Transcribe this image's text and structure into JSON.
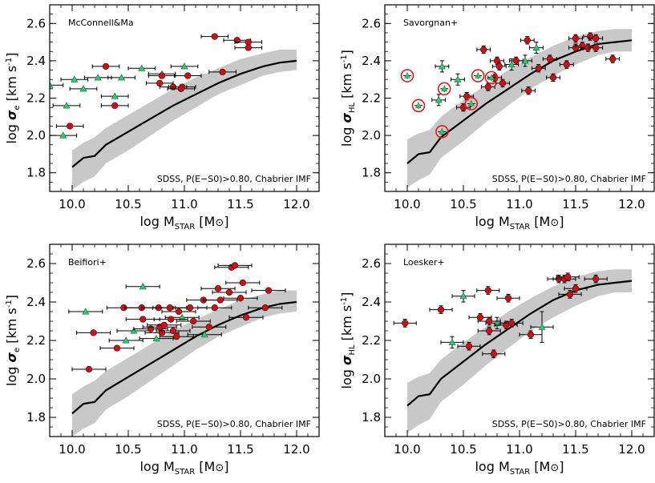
{
  "figure": {
    "footnote": "SDSS, P(E−S0)>0.80, Chabrier IMF",
    "xlabel_main": "log M",
    "xlabel_sub": "STAR",
    "xlabel_unit_open": " [M",
    "xlabel_unit_sym": "⊙",
    "xlabel_unit_close": "]",
    "ylabel_sigma": "σ",
    "ylabel_log": "log ",
    "ylabel_units": " [km s",
    "ylabel_exp": "-1",
    "ylabel_close": "]",
    "colors": {
      "relation_line": "#000000",
      "scatter_band": "#c8c8c8",
      "circle_fill": "#c0151b",
      "circle_stroke": "#6b0000",
      "triangle_fill": "#2ecc71",
      "triangle_stroke": "#0b6b30",
      "open_circle_stroke": "#e01b1b",
      "error_bar": "#000000"
    }
  },
  "chart_data": [
    {
      "type": "scatter",
      "panel_label": "McConnell&Ma",
      "y_subscript": "e",
      "xlim": [
        9.8,
        12.2
      ],
      "ylim": [
        1.7,
        2.7
      ],
      "x_ticks": [
        "10.0",
        "10.5",
        "11.0",
        "11.5",
        "12.0"
      ],
      "y_ticks": [
        "1.8",
        "2.0",
        "2.2",
        "2.4",
        "2.6"
      ],
      "relation": {
        "x": [
          10.0,
          10.1,
          10.2,
          10.3,
          10.5,
          10.7,
          10.9,
          11.1,
          11.3,
          11.5,
          11.7,
          11.85,
          12.0
        ],
        "y": [
          1.83,
          1.88,
          1.89,
          1.95,
          2.02,
          2.09,
          2.16,
          2.22,
          2.28,
          2.33,
          2.37,
          2.39,
          2.4
        ],
        "band_low": [
          1.71,
          1.75,
          1.78,
          1.85,
          1.92,
          2.0,
          2.08,
          2.15,
          2.22,
          2.27,
          2.32,
          2.34,
          2.35
        ],
        "band_high": [
          1.92,
          1.96,
          1.99,
          2.04,
          2.11,
          2.18,
          2.25,
          2.31,
          2.36,
          2.41,
          2.44,
          2.46,
          2.46
        ]
      },
      "circles": [
        {
          "x": 10.3,
          "y": 2.37,
          "xerr": 0.12
        },
        {
          "x": 11.27,
          "y": 2.53,
          "xerr": 0.12
        },
        {
          "x": 11.47,
          "y": 2.51,
          "xerr": 0.12
        },
        {
          "x": 11.57,
          "y": 2.5,
          "xerr": 0.12
        },
        {
          "x": 11.57,
          "y": 2.47,
          "xerr": 0.12
        },
        {
          "x": 11.34,
          "y": 2.34,
          "xerr": 0.12
        },
        {
          "x": 11.03,
          "y": 2.32,
          "xerr": 0.12
        },
        {
          "x": 10.8,
          "y": 2.32,
          "xerr": 0.12
        },
        {
          "x": 10.78,
          "y": 2.28,
          "xerr": 0.12
        },
        {
          "x": 10.9,
          "y": 2.26,
          "xerr": 0.12
        },
        {
          "x": 10.98,
          "y": 2.26,
          "xerr": 0.12
        },
        {
          "x": 10.97,
          "y": 2.25,
          "xerr": 0.12
        },
        {
          "x": 10.38,
          "y": 2.16,
          "xerr": 0.12
        },
        {
          "x": 9.98,
          "y": 2.05,
          "xerr": 0.12
        }
      ],
      "triangles": [
        {
          "x": 9.8,
          "y": 2.27,
          "xerr": 0.12
        },
        {
          "x": 10.02,
          "y": 2.3,
          "xerr": 0.12
        },
        {
          "x": 10.23,
          "y": 2.31,
          "xerr": 0.12
        },
        {
          "x": 10.44,
          "y": 2.31,
          "xerr": 0.12
        },
        {
          "x": 10.62,
          "y": 2.36,
          "xerr": 0.12
        },
        {
          "x": 10.8,
          "y": 2.33,
          "xerr": 0.12
        },
        {
          "x": 11.0,
          "y": 2.37,
          "xerr": 0.12
        },
        {
          "x": 10.38,
          "y": 2.21,
          "xerr": 0.12
        },
        {
          "x": 10.1,
          "y": 2.25,
          "xerr": 0.12
        },
        {
          "x": 9.95,
          "y": 2.16,
          "xerr": 0.12
        },
        {
          "x": 9.92,
          "y": 2.0,
          "xerr": 0.12
        }
      ],
      "open_circles": []
    },
    {
      "type": "scatter",
      "panel_label": "Savorgnan+",
      "y_subscript": "HL",
      "xlim": [
        9.8,
        12.2
      ],
      "ylim": [
        1.7,
        2.7
      ],
      "x_ticks": [
        "10.0",
        "10.5",
        "11.0",
        "11.5",
        "12.0"
      ],
      "y_ticks": [
        "1.8",
        "2.0",
        "2.2",
        "2.4",
        "2.6"
      ],
      "relation": {
        "x": [
          10.0,
          10.1,
          10.2,
          10.3,
          10.5,
          10.7,
          10.9,
          11.1,
          11.3,
          11.5,
          11.7,
          11.85,
          12.0
        ],
        "y": [
          1.85,
          1.9,
          1.91,
          1.99,
          2.08,
          2.17,
          2.25,
          2.33,
          2.4,
          2.45,
          2.49,
          2.5,
          2.51
        ],
        "band_low": [
          1.72,
          1.76,
          1.79,
          1.88,
          1.97,
          2.07,
          2.16,
          2.25,
          2.32,
          2.38,
          2.43,
          2.45,
          2.45
        ],
        "band_high": [
          1.98,
          2.01,
          2.03,
          2.1,
          2.19,
          2.27,
          2.35,
          2.42,
          2.48,
          2.53,
          2.56,
          2.57,
          2.57
        ]
      },
      "circles": [
        {
          "x": 10.5,
          "y": 2.15,
          "xerr": 0.06,
          "yerr": 0.02
        },
        {
          "x": 10.53,
          "y": 2.21,
          "xerr": 0.06,
          "yerr": 0.02
        },
        {
          "x": 10.68,
          "y": 2.46,
          "xerr": 0.06,
          "yerr": 0.02
        },
        {
          "x": 10.72,
          "y": 2.26,
          "xerr": 0.06,
          "yerr": 0.02
        },
        {
          "x": 10.8,
          "y": 2.4,
          "xerr": 0.06,
          "yerr": 0.02
        },
        {
          "x": 10.82,
          "y": 2.37,
          "xerr": 0.06,
          "yerr": 0.02
        },
        {
          "x": 10.85,
          "y": 2.28,
          "xerr": 0.06,
          "yerr": 0.02
        },
        {
          "x": 10.97,
          "y": 2.4,
          "xerr": 0.06,
          "yerr": 0.02
        },
        {
          "x": 11.07,
          "y": 2.51,
          "xerr": 0.06,
          "yerr": 0.02
        },
        {
          "x": 11.08,
          "y": 2.24,
          "xerr": 0.06,
          "yerr": 0.02
        },
        {
          "x": 11.17,
          "y": 2.36,
          "xerr": 0.06,
          "yerr": 0.02
        },
        {
          "x": 11.27,
          "y": 2.41,
          "xerr": 0.06,
          "yerr": 0.02
        },
        {
          "x": 11.3,
          "y": 2.31,
          "xerr": 0.06,
          "yerr": 0.02
        },
        {
          "x": 11.42,
          "y": 2.38,
          "xerr": 0.06,
          "yerr": 0.02
        },
        {
          "x": 11.5,
          "y": 2.52,
          "xerr": 0.06,
          "yerr": 0.02
        },
        {
          "x": 11.5,
          "y": 2.47,
          "xerr": 0.06,
          "yerr": 0.02
        },
        {
          "x": 11.56,
          "y": 2.48,
          "xerr": 0.06,
          "yerr": 0.02
        },
        {
          "x": 11.61,
          "y": 2.47,
          "xerr": 0.06,
          "yerr": 0.02
        },
        {
          "x": 11.63,
          "y": 2.53,
          "xerr": 0.06,
          "yerr": 0.02
        },
        {
          "x": 11.68,
          "y": 2.52,
          "xerr": 0.06,
          "yerr": 0.02
        },
        {
          "x": 11.68,
          "y": 2.47,
          "xerr": 0.06,
          "yerr": 0.02
        },
        {
          "x": 11.83,
          "y": 2.41,
          "xerr": 0.06,
          "yerr": 0.02
        },
        {
          "x": 10.78,
          "y": 2.31,
          "xerr": 0.06,
          "yerr": 0.02
        }
      ],
      "triangles": [
        {
          "x": 10.31,
          "y": 2.37,
          "xerr": 0.06,
          "yerr": 0.03
        },
        {
          "x": 10.45,
          "y": 2.3,
          "xerr": 0.06,
          "yerr": 0.03
        },
        {
          "x": 10.28,
          "y": 2.19,
          "xerr": 0.06,
          "yerr": 0.03
        },
        {
          "x": 10.93,
          "y": 2.38,
          "xerr": 0.06,
          "yerr": 0.03
        },
        {
          "x": 11.05,
          "y": 2.4,
          "xerr": 0.06,
          "yerr": 0.03
        },
        {
          "x": 11.15,
          "y": 2.47,
          "xerr": 0.06,
          "yerr": 0.03
        }
      ],
      "open_circles": [
        {
          "x": 10.0,
          "y": 2.32
        },
        {
          "x": 10.1,
          "y": 2.16
        },
        {
          "x": 10.33,
          "y": 2.25
        },
        {
          "x": 10.63,
          "y": 2.32
        },
        {
          "x": 10.57,
          "y": 2.17
        },
        {
          "x": 10.75,
          "y": 2.31
        },
        {
          "x": 10.31,
          "y": 2.02
        }
      ]
    },
    {
      "type": "scatter",
      "panel_label": "Beifiori+",
      "y_subscript": "e",
      "xlim": [
        9.8,
        12.2
      ],
      "ylim": [
        1.7,
        2.7
      ],
      "x_ticks": [
        "10.0",
        "10.5",
        "11.0",
        "11.5",
        "12.0"
      ],
      "y_ticks": [
        "1.8",
        "2.0",
        "2.2",
        "2.4",
        "2.6"
      ],
      "relation": {
        "x": [
          10.0,
          10.1,
          10.2,
          10.3,
          10.5,
          10.7,
          10.9,
          11.1,
          11.3,
          11.5,
          11.7,
          11.85,
          12.0
        ],
        "y": [
          1.82,
          1.87,
          1.88,
          1.94,
          2.01,
          2.08,
          2.15,
          2.22,
          2.28,
          2.33,
          2.37,
          2.39,
          2.4
        ],
        "band_low": [
          1.7,
          1.74,
          1.77,
          1.84,
          1.91,
          1.99,
          2.07,
          2.15,
          2.22,
          2.27,
          2.32,
          2.34,
          2.35
        ],
        "band_high": [
          1.92,
          1.96,
          1.99,
          2.04,
          2.11,
          2.18,
          2.25,
          2.31,
          2.36,
          2.41,
          2.44,
          2.46,
          2.46
        ]
      },
      "circles": [
        {
          "x": 10.15,
          "y": 2.05,
          "xerr": 0.15
        },
        {
          "x": 10.19,
          "y": 2.24,
          "xerr": 0.15
        },
        {
          "x": 10.4,
          "y": 2.16,
          "xerr": 0.15
        },
        {
          "x": 10.46,
          "y": 2.37,
          "xerr": 0.15
        },
        {
          "x": 10.62,
          "y": 2.37,
          "xerr": 0.15
        },
        {
          "x": 10.63,
          "y": 2.31,
          "xerr": 0.15
        },
        {
          "x": 10.7,
          "y": 2.26,
          "xerr": 0.15
        },
        {
          "x": 10.77,
          "y": 2.37,
          "xerr": 0.15
        },
        {
          "x": 10.78,
          "y": 2.27,
          "xerr": 0.15
        },
        {
          "x": 10.8,
          "y": 2.24,
          "xerr": 0.15
        },
        {
          "x": 10.82,
          "y": 2.28,
          "xerr": 0.15
        },
        {
          "x": 10.87,
          "y": 2.37,
          "xerr": 0.15
        },
        {
          "x": 10.88,
          "y": 2.31,
          "xerr": 0.15
        },
        {
          "x": 10.9,
          "y": 2.25,
          "xerr": 0.15
        },
        {
          "x": 10.93,
          "y": 2.22,
          "xerr": 0.15
        },
        {
          "x": 10.95,
          "y": 2.35,
          "xerr": 0.15
        },
        {
          "x": 11.05,
          "y": 2.37,
          "xerr": 0.15
        },
        {
          "x": 11.08,
          "y": 2.3,
          "xerr": 0.15
        },
        {
          "x": 11.17,
          "y": 2.41,
          "xerr": 0.15
        },
        {
          "x": 11.22,
          "y": 2.27,
          "xerr": 0.15
        },
        {
          "x": 11.27,
          "y": 2.37,
          "xerr": 0.15
        },
        {
          "x": 11.3,
          "y": 2.47,
          "xerr": 0.15
        },
        {
          "x": 11.32,
          "y": 2.41,
          "xerr": 0.15
        },
        {
          "x": 11.4,
          "y": 2.45,
          "xerr": 0.15
        },
        {
          "x": 11.42,
          "y": 2.58,
          "xerr": 0.15
        },
        {
          "x": 11.45,
          "y": 2.59,
          "xerr": 0.15
        },
        {
          "x": 11.5,
          "y": 2.42,
          "xerr": 0.15
        },
        {
          "x": 11.52,
          "y": 2.5,
          "xerr": 0.15
        },
        {
          "x": 11.55,
          "y": 2.32,
          "xerr": 0.15
        },
        {
          "x": 11.72,
          "y": 2.37,
          "xerr": 0.15
        },
        {
          "x": 11.75,
          "y": 2.46,
          "xerr": 0.15
        }
      ],
      "triangles": [
        {
          "x": 10.12,
          "y": 2.35,
          "xerr": 0.15
        },
        {
          "x": 10.48,
          "y": 2.2,
          "xerr": 0.15
        },
        {
          "x": 10.55,
          "y": 2.25,
          "xerr": 0.15
        },
        {
          "x": 10.63,
          "y": 2.48,
          "xerr": 0.15
        },
        {
          "x": 10.75,
          "y": 2.21,
          "xerr": 0.15
        },
        {
          "x": 10.98,
          "y": 2.32,
          "xerr": 0.15
        },
        {
          "x": 11.18,
          "y": 2.23,
          "xerr": 0.15
        }
      ],
      "open_circles": []
    },
    {
      "type": "scatter",
      "panel_label": "Loesker+",
      "y_subscript": "HL",
      "xlim": [
        9.8,
        12.2
      ],
      "ylim": [
        1.7,
        2.7
      ],
      "x_ticks": [
        "10.0",
        "10.5",
        "11.0",
        "11.5",
        "12.0"
      ],
      "y_ticks": [
        "1.8",
        "2.0",
        "2.2",
        "2.4",
        "2.6"
      ],
      "relation": {
        "x": [
          10.0,
          10.1,
          10.2,
          10.3,
          10.5,
          10.7,
          10.9,
          11.1,
          11.3,
          11.5,
          11.7,
          11.85,
          12.0
        ],
        "y": [
          1.86,
          1.91,
          1.92,
          2.0,
          2.09,
          2.18,
          2.26,
          2.34,
          2.41,
          2.46,
          2.49,
          2.5,
          2.51
        ],
        "band_low": [
          1.72,
          1.76,
          1.79,
          1.88,
          1.97,
          2.07,
          2.16,
          2.25,
          2.32,
          2.38,
          2.43,
          2.45,
          2.45
        ],
        "band_high": [
          1.98,
          2.01,
          2.03,
          2.1,
          2.19,
          2.27,
          2.35,
          2.42,
          2.48,
          2.53,
          2.56,
          2.57,
          2.57
        ]
      },
      "circles": [
        {
          "x": 9.98,
          "y": 2.29,
          "xerr": 0.1,
          "yerr": 0.02
        },
        {
          "x": 10.3,
          "y": 2.36,
          "xerr": 0.1,
          "yerr": 0.02
        },
        {
          "x": 10.55,
          "y": 2.17,
          "xerr": 0.1,
          "yerr": 0.02
        },
        {
          "x": 10.65,
          "y": 2.32,
          "xerr": 0.1,
          "yerr": 0.02
        },
        {
          "x": 10.72,
          "y": 2.46,
          "xerr": 0.1,
          "yerr": 0.02
        },
        {
          "x": 10.73,
          "y": 2.25,
          "xerr": 0.1,
          "yerr": 0.02
        },
        {
          "x": 10.73,
          "y": 2.3,
          "xerr": 0.1,
          "yerr": 0.02
        },
        {
          "x": 10.77,
          "y": 2.13,
          "xerr": 0.1,
          "yerr": 0.02
        },
        {
          "x": 10.88,
          "y": 2.28,
          "xerr": 0.1,
          "yerr": 0.02
        },
        {
          "x": 10.9,
          "y": 2.42,
          "xerr": 0.1,
          "yerr": 0.02
        },
        {
          "x": 10.93,
          "y": 2.29,
          "xerr": 0.1,
          "yerr": 0.02
        },
        {
          "x": 11.1,
          "y": 2.23,
          "xerr": 0.1,
          "yerr": 0.02
        },
        {
          "x": 11.35,
          "y": 2.52,
          "xerr": 0.1,
          "yerr": 0.02
        },
        {
          "x": 11.4,
          "y": 2.52,
          "xerr": 0.1,
          "yerr": 0.02
        },
        {
          "x": 11.43,
          "y": 2.53,
          "xerr": 0.1,
          "yerr": 0.02
        },
        {
          "x": 11.45,
          "y": 2.44,
          "xerr": 0.1,
          "yerr": 0.02
        },
        {
          "x": 11.5,
          "y": 2.47,
          "xerr": 0.1,
          "yerr": 0.02
        },
        {
          "x": 11.68,
          "y": 2.52,
          "xerr": 0.1,
          "yerr": 0.02
        }
      ],
      "triangles": [
        {
          "x": 10.5,
          "y": 2.43,
          "xerr": 0.1,
          "yerr": 0.03
        },
        {
          "x": 10.4,
          "y": 2.19,
          "xerr": 0.1,
          "yerr": 0.03
        },
        {
          "x": 10.8,
          "y": 2.29,
          "xerr": 0.1,
          "yerr": 0.03
        },
        {
          "x": 11.2,
          "y": 2.27,
          "xerr": 0.1,
          "yerr": 0.08
        }
      ],
      "open_circles": []
    }
  ]
}
